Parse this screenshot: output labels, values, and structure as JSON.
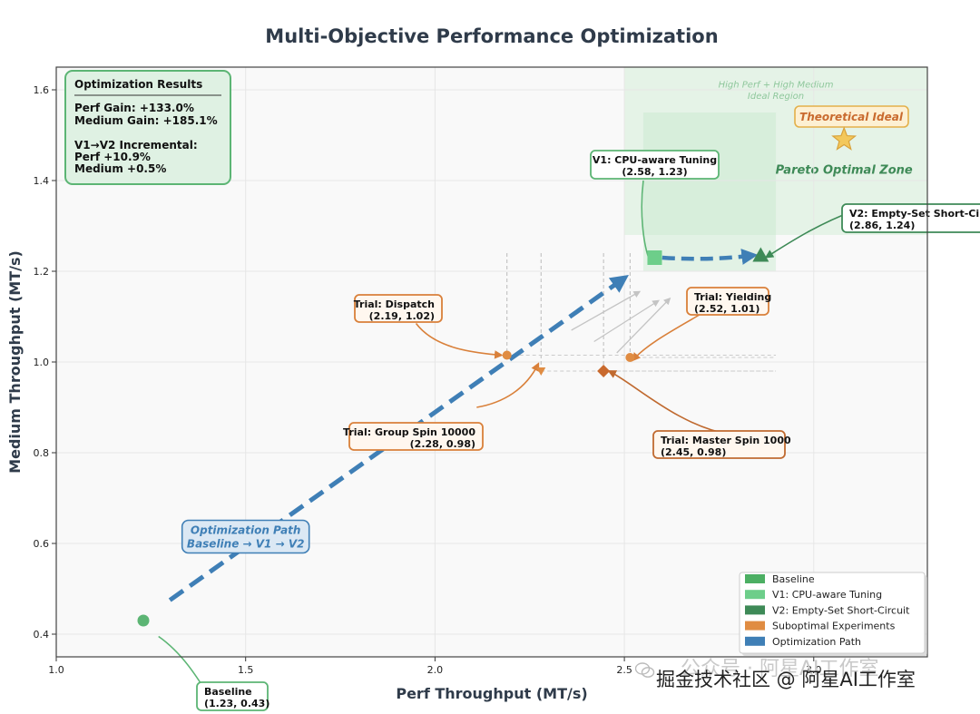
{
  "chart_data": {
    "type": "scatter",
    "title": "Multi-Objective Performance Optimization",
    "xlabel": "Perf Throughput (MT/s)",
    "ylabel": "Medium Throughput (MT/s)",
    "xlim": [
      1.0,
      3.3
    ],
    "ylim": [
      0.35,
      1.65
    ],
    "xticks": [
      "1.0",
      "1.5",
      "2.0",
      "2.5",
      "3.0"
    ],
    "xtick_values": [
      1.0,
      1.5,
      2.0,
      2.5,
      3.0
    ],
    "yticks": [
      "0.4",
      "0.6",
      "0.8",
      "1.0",
      "1.2",
      "1.4",
      "1.6"
    ],
    "ytick_values": [
      0.4,
      0.6,
      0.8,
      1.0,
      1.2,
      1.4,
      1.6
    ],
    "grid": true,
    "points": [
      {
        "key": "baseline",
        "label": "Baseline",
        "coords": "(1.23, 0.43)",
        "x": 1.23,
        "y": 0.43,
        "marker": "circle",
        "color": "#5cb574"
      },
      {
        "key": "dispatch",
        "label": "Trial: Dispatch",
        "coords": "(2.19, 1.02)",
        "x": 2.19,
        "y": 1.015,
        "marker": "circle",
        "color": "#e08c42"
      },
      {
        "key": "yielding",
        "label": "Trial: Yielding",
        "coords": "(2.52, 1.01)",
        "x": 2.515,
        "y": 1.01,
        "marker": "circle",
        "color": "#e08c42"
      },
      {
        "key": "group_spin",
        "label": "Trial: Group Spin 10000",
        "coords": "(2.28, 0.98)",
        "x": 2.28,
        "y": 0.98,
        "marker": "triangle-down",
        "color": "#e08c42"
      },
      {
        "key": "master_spin",
        "label": "Trial: Master Spin 1000",
        "coords": "(2.45, 0.98)",
        "x": 2.445,
        "y": 0.98,
        "marker": "diamond",
        "color": "#c96a2e"
      },
      {
        "key": "v1",
        "label": "V1: CPU-aware Tuning",
        "coords": "(2.58, 1.23)",
        "x": 2.58,
        "y": 1.23,
        "marker": "square",
        "color": "#6dce8a"
      },
      {
        "key": "v2",
        "label": "V2: Empty-Set Short-Circuit",
        "coords": "(2.86, 1.24)",
        "x": 2.86,
        "y": 1.235,
        "marker": "triangle",
        "color": "#3e8a57"
      }
    ],
    "optimization_path": {
      "label": "Optimization Path",
      "sublabel": "Baseline → V1 → V2",
      "from": [
        1.3,
        0.475
      ],
      "to": [
        2.5,
        1.185
      ]
    },
    "v1_v2_arrow": {
      "from": [
        2.6,
        1.23
      ],
      "to": [
        2.84,
        1.235
      ]
    },
    "regions": {
      "ideal_region": {
        "line1": "High Perf + High Medium",
        "line2": "Ideal Region",
        "x": [
          2.5,
          3.3
        ],
        "y": [
          1.28,
          1.65
        ]
      },
      "pareto_zone": {
        "label": "Pareto Optimal Zone",
        "x": [
          2.55,
          2.9
        ],
        "y": [
          1.2,
          1.55
        ]
      }
    },
    "theoretical_ideal": {
      "label": "Theoretical Ideal",
      "x": 3.08,
      "y": 1.49
    },
    "results_box": {
      "title": "Optimization Results",
      "lines": [
        "Perf Gain: +133.0%",
        "Medium Gain: +185.1%",
        "",
        "V1→V2 Incremental:",
        "Perf +10.9%",
        "Medium +0.5%"
      ]
    },
    "legend": {
      "placement": "bottom-right",
      "entries": [
        {
          "label": "Baseline",
          "color": "#4caf63"
        },
        {
          "label": "V1: CPU-aware Tuning",
          "color": "#6dce8a"
        },
        {
          "label": "V2: Empty-Set Short-Circuit",
          "color": "#3e8a57"
        },
        {
          "label": "Suboptimal Experiments",
          "color": "#e08c42"
        },
        {
          "label": "Optimization Path",
          "color": "#3f7fb6"
        }
      ]
    }
  },
  "watermark": {
    "text": "掘金技术社区 @ 阿星AI工作室",
    "ghost_text": "公众号 · 阿星AI工作室"
  }
}
